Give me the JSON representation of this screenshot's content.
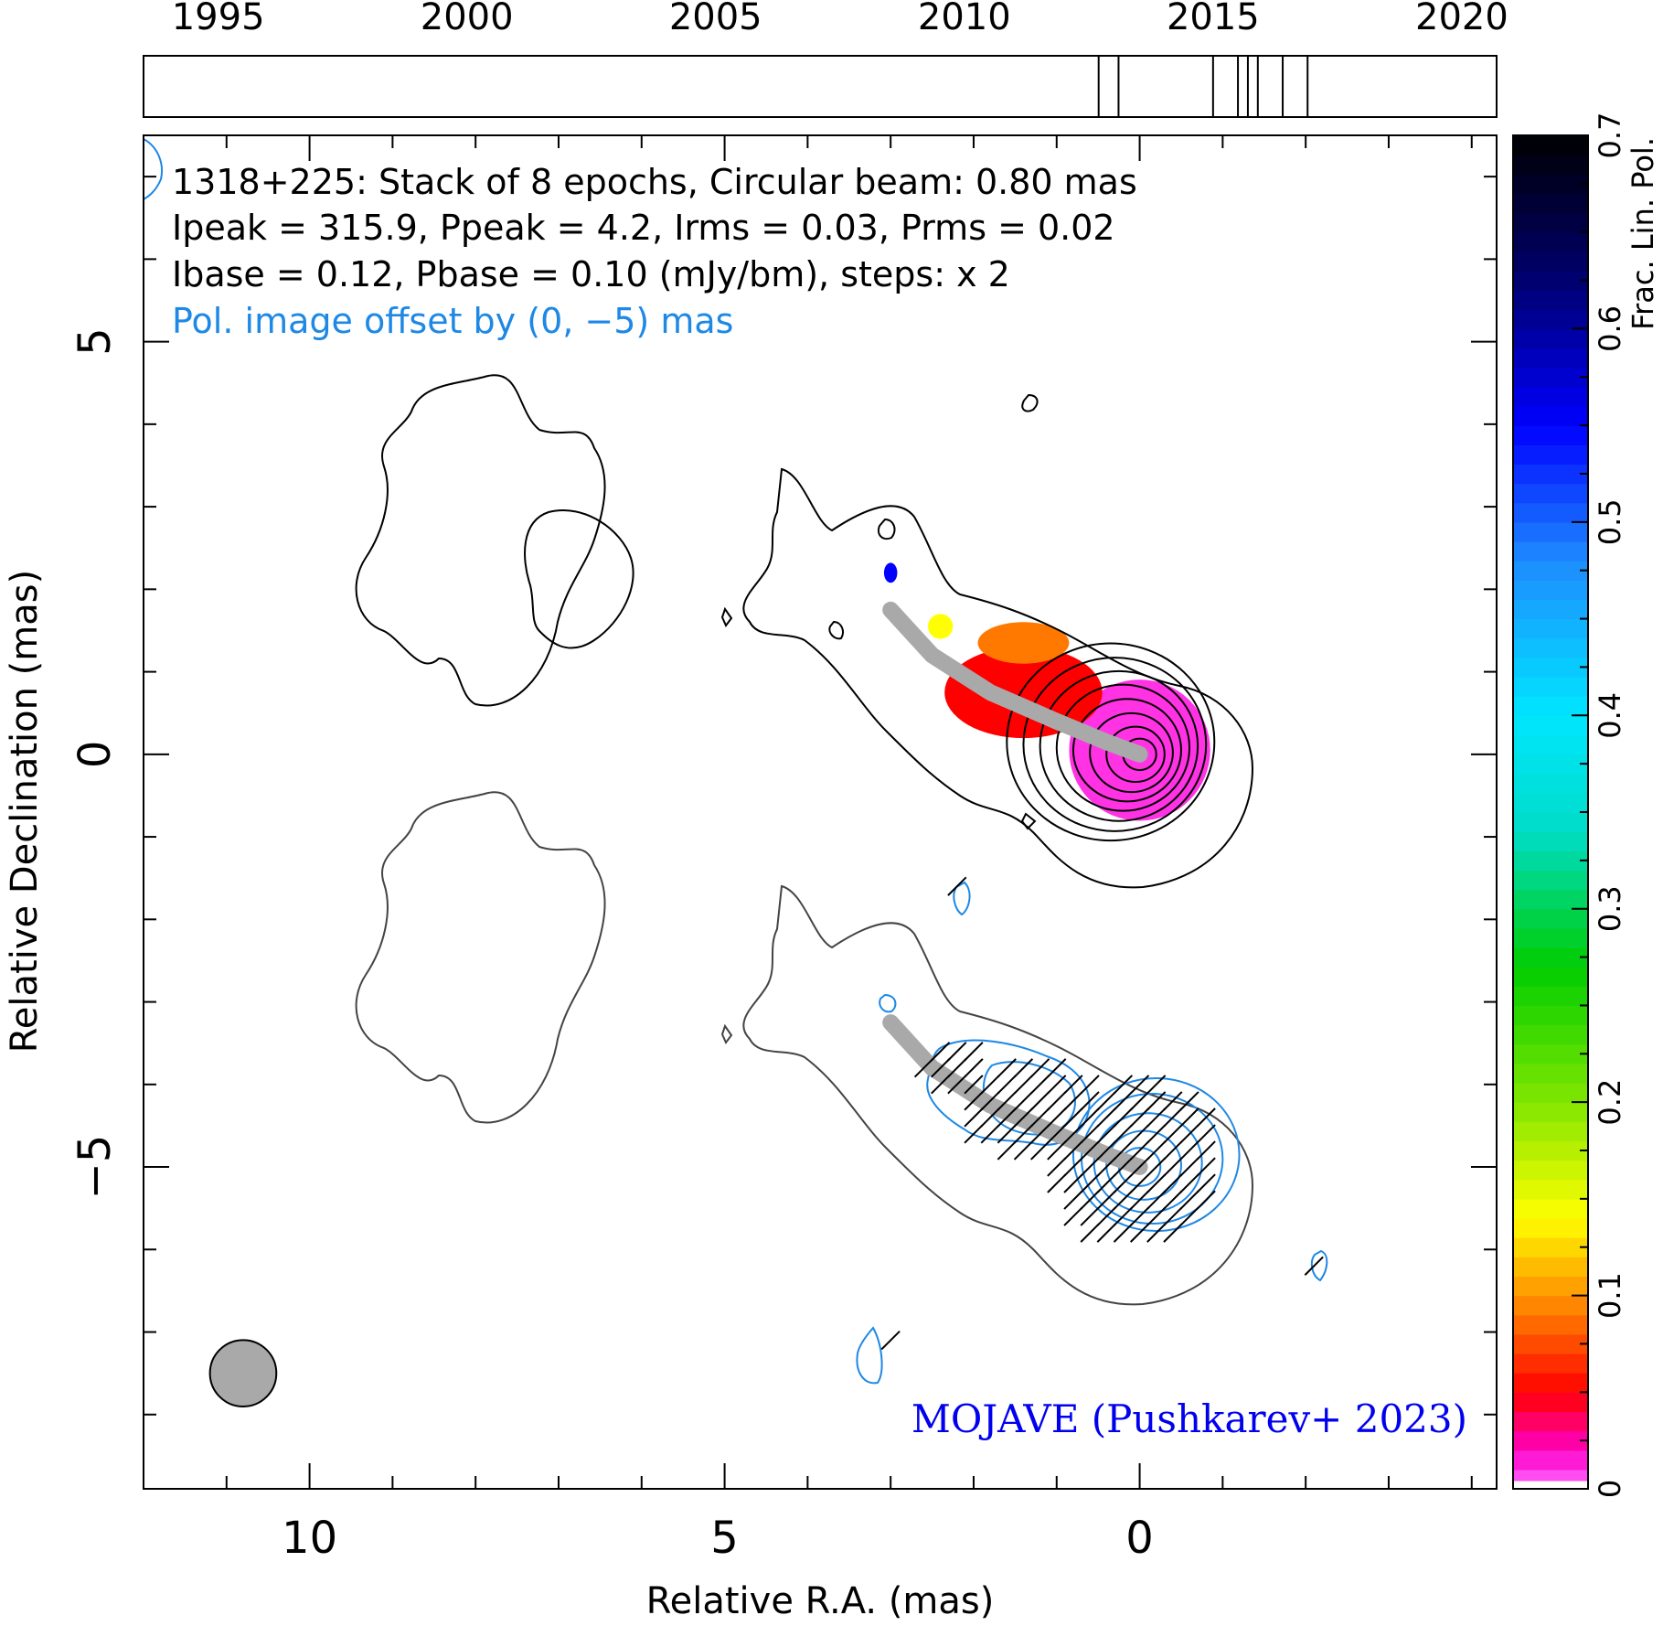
{
  "chart_data": {
    "type": "contour-map",
    "xlabel": "Relative R.A. (mas)",
    "ylabel": "Relative Declination (mas)",
    "xlim": [
      12.0,
      -4.3
    ],
    "ylim": [
      -8.9,
      7.5
    ],
    "x_ticks": [
      10,
      5,
      0
    ],
    "y_ticks": [
      5,
      0,
      -5
    ],
    "x_tick_labels": [
      "10",
      "5",
      "0"
    ],
    "y_tick_labels": [
      "5",
      "0",
      "−5"
    ],
    "annotation_lines": [
      "1318+225: Stack of 8 epochs, Circular beam: 0.80 mas",
      "Ipeak = 315.9, Ppeak = 4.2, Irms = 0.03, Prms = 0.02",
      "Ibase = 0.12, Pbase = 0.10 (mJy/bm), steps: x 2"
    ],
    "offset_note": "Pol. image offset by (0, −5) mas",
    "credit": "MOJAVE (Pushkarev+ 2023)",
    "beam_diameter_mas": 0.8,
    "beam_center": [
      10.8,
      -7.5
    ],
    "ridge_line": [
      [
        3.0,
        1.75
      ],
      [
        2.5,
        1.2
      ],
      [
        1.8,
        0.75
      ],
      [
        1.0,
        0.4
      ],
      [
        0.4,
        0.15
      ],
      [
        0.0,
        0.0
      ]
    ],
    "timeline": {
      "range": [
        1993.5,
        2020.7
      ],
      "ticks": [
        1995,
        2000,
        2005,
        2010,
        2015,
        2020
      ],
      "tick_labels": [
        "1995",
        "2000",
        "2005",
        "2010",
        "2015",
        "2020"
      ],
      "epochs": [
        2012.7,
        2013.1,
        2015.0,
        2015.5,
        2015.7,
        2015.9,
        2016.4,
        2016.9
      ]
    },
    "colorbar": {
      "label": "Frac. Lin. Pol.",
      "range": [
        0,
        0.7
      ],
      "ticks": [
        0,
        0.1,
        0.2,
        0.3,
        0.4,
        0.5,
        0.6,
        0.7
      ],
      "tick_labels": [
        "0",
        "0.1",
        "0.2",
        "0.3",
        "0.4",
        "0.5",
        "0.6",
        "0.7"
      ]
    },
    "fractional_pol_regions": [
      {
        "x": 0.0,
        "y": 0.05,
        "rx": 0.85,
        "ry": 0.85,
        "value": 0.01
      },
      {
        "x": 1.4,
        "y": 0.75,
        "rx": 0.95,
        "ry": 0.55,
        "value": 0.05
      },
      {
        "x": 1.4,
        "y": 1.35,
        "rx": 0.55,
        "ry": 0.25,
        "value": 0.09
      },
      {
        "x": 2.4,
        "y": 1.55,
        "rx": 0.15,
        "ry": 0.15,
        "value": 0.14
      },
      {
        "x": 3.0,
        "y": 2.2,
        "rx": 0.08,
        "ry": 0.12,
        "value": 0.55
      }
    ],
    "i_contours": [
      {
        "cx": 0.0,
        "cy": 0.0,
        "r": 0.2
      },
      {
        "cx": 0.05,
        "cy": 0.0,
        "r": 0.35
      },
      {
        "cx": 0.1,
        "cy": 0.02,
        "r": 0.5
      },
      {
        "cx": 0.15,
        "cy": 0.05,
        "r": 0.65
      },
      {
        "cx": 0.2,
        "cy": 0.08,
        "r": 0.8
      },
      {
        "cx": 0.25,
        "cy": 0.1,
        "r": 0.95
      },
      {
        "cx": 0.3,
        "cy": 0.12,
        "r": 1.1
      },
      {
        "cx": 0.35,
        "cy": 0.15,
        "r": 1.25
      }
    ],
    "p_contours": [
      {
        "cx": 0.0,
        "cy": -5.0,
        "r": 0.25
      },
      {
        "cx": -0.05,
        "cy": -4.98,
        "r": 0.45
      },
      {
        "cx": -0.1,
        "cy": -4.95,
        "r": 0.65
      },
      {
        "cx": -0.15,
        "cy": -4.9,
        "r": 0.85
      },
      {
        "cx": -0.2,
        "cy": -4.85,
        "r": 1.0
      }
    ],
    "evpa_deg": 45
  }
}
